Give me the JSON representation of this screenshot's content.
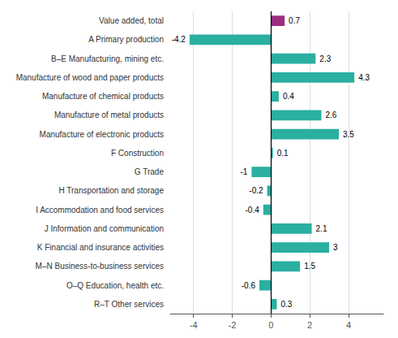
{
  "chart_data": {
    "type": "bar",
    "orientation": "horizontal",
    "categories": [
      "Value added, total",
      "A Primary production",
      "B–E Manufacturing, mining etc.",
      "Manufacture of wood and paper products",
      "Manufacture of chemical products",
      "Manufacture of metal products",
      "Manufacture of electronic products",
      "F Construction",
      "G Trade",
      "H Transportation and storage",
      "I Accommodation and food services",
      "J Information and communication",
      "K Financial and insurance activities",
      "M–N Business-to-business services",
      "O–Q Education, health etc.",
      "R–T Other services"
    ],
    "values": [
      0.7,
      -4.2,
      2.3,
      4.3,
      0.4,
      2.6,
      3.5,
      0.1,
      -1.0,
      -0.2,
      -0.4,
      2.1,
      3.0,
      1.5,
      -0.6,
      0.3
    ],
    "colors": [
      "#9b2d82",
      "#2aafa0",
      "#2aafa0",
      "#2aafa0",
      "#2aafa0",
      "#2aafa0",
      "#2aafa0",
      "#2aafa0",
      "#2aafa0",
      "#2aafa0",
      "#2aafa0",
      "#2aafa0",
      "#2aafa0",
      "#2aafa0",
      "#2aafa0",
      "#2aafa0"
    ],
    "xlim": [
      -5.2,
      5.8
    ],
    "xticks": [
      -4,
      -2,
      0,
      2,
      4
    ],
    "grid": true,
    "data_labels": true
  }
}
